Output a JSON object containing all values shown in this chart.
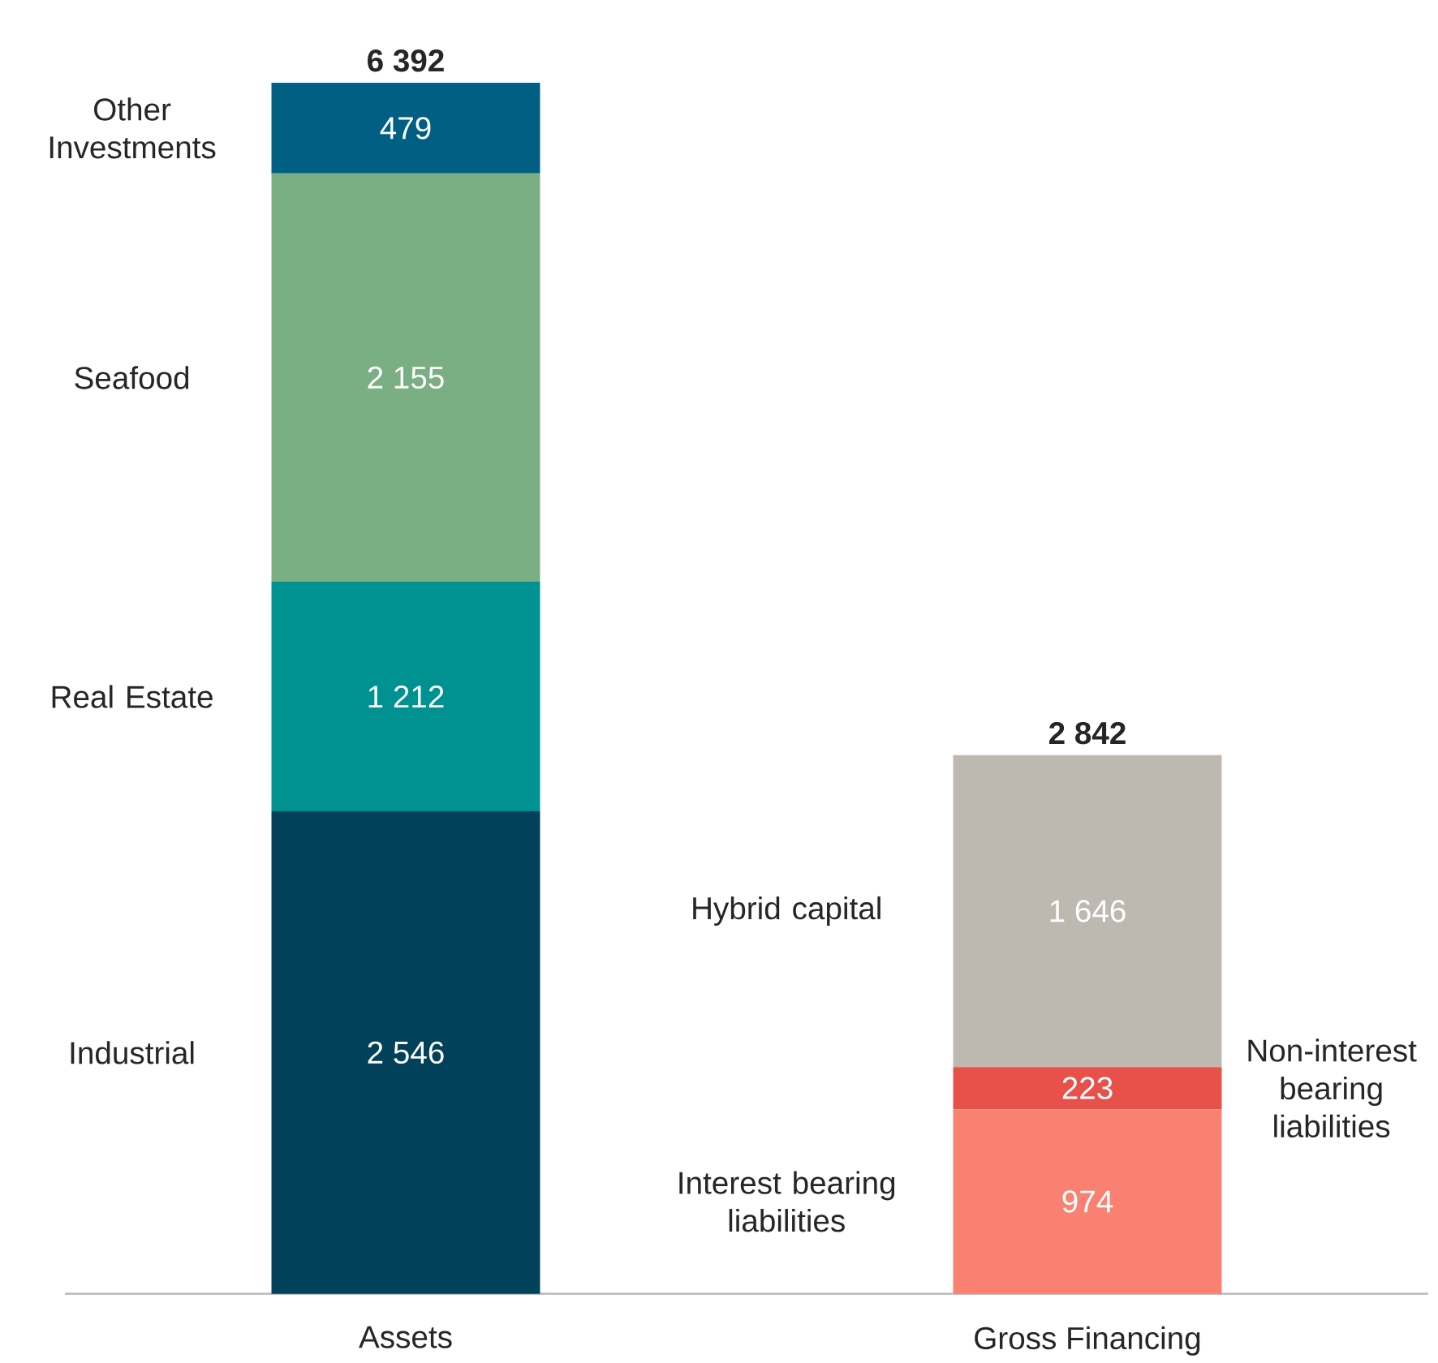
{
  "chart_data": {
    "type": "bar",
    "stacked": true,
    "categories": [
      "Assets",
      "Gross Financing"
    ],
    "totals": [
      "6 392",
      "2 842"
    ],
    "series": [
      {
        "name": "Industrial",
        "color": "#01425a",
        "values": [
          2546,
          null
        ],
        "value_labels": [
          "2 546",
          null
        ]
      },
      {
        "name": "Real Estate",
        "color": "#009191",
        "values": [
          1212,
          null
        ],
        "value_labels": [
          "1 212",
          null
        ]
      },
      {
        "name": "Seafood",
        "color": "#7aae83",
        "values": [
          2155,
          null
        ],
        "value_labels": [
          "2 155",
          null
        ]
      },
      {
        "name": "Other Investments",
        "color": "#005f82",
        "values": [
          479,
          null
        ],
        "value_labels": [
          "479",
          null
        ]
      },
      {
        "name": "Interest bearing liabilities",
        "color": "#f98172",
        "values": [
          null,
          974
        ],
        "value_labels": [
          null,
          "974"
        ]
      },
      {
        "name": "Non-interest bearing liabilities",
        "color": "#e8504a",
        "values": [
          null,
          223
        ],
        "value_labels": [
          null,
          "223"
        ]
      },
      {
        "name": "Hybrid capital",
        "color": "#bdb9b1",
        "values": [
          null,
          1646
        ],
        "value_labels": [
          null,
          "1 646"
        ]
      }
    ]
  }
}
